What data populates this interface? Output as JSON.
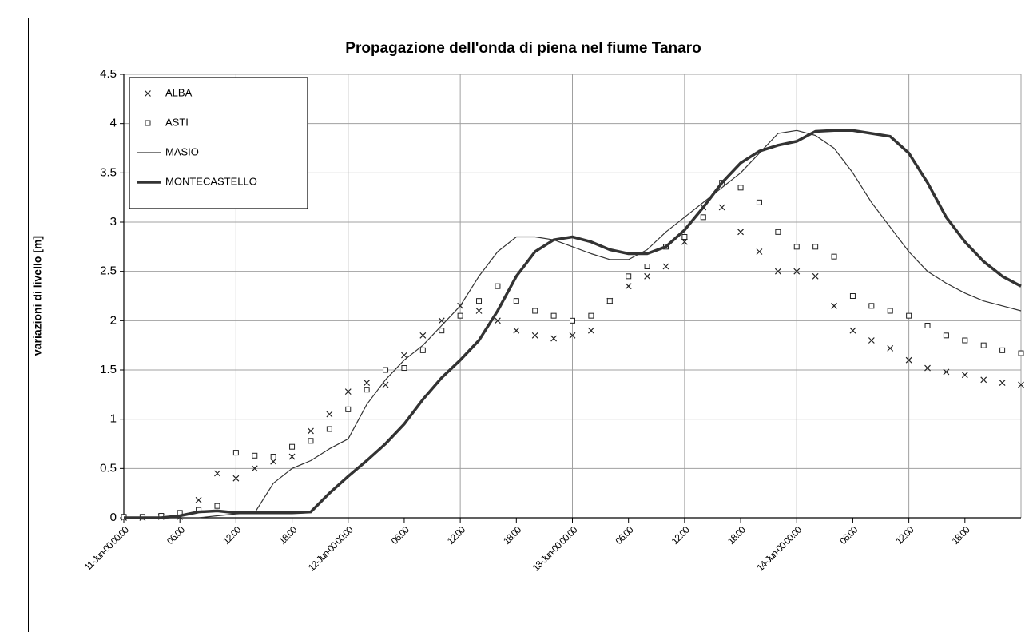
{
  "chart_data": {
    "type": "line",
    "title": "Propagazione dell'onda di piena nel fiume Tanaro",
    "y_label": "variazioni di livello [m]",
    "x": [
      0,
      2,
      4,
      6,
      8,
      10,
      12,
      14,
      16,
      18,
      20,
      22,
      24,
      26,
      28,
      30,
      32,
      34,
      36,
      38,
      40,
      42,
      44,
      46,
      48,
      50,
      52,
      54,
      56,
      58,
      60,
      62,
      64,
      66,
      68,
      70,
      72,
      74,
      76,
      78,
      80,
      82,
      84,
      86,
      88,
      90,
      92,
      94,
      96
    ],
    "series": [
      {
        "name": "ALBA",
        "color": "#222222",
        "marker": "cross",
        "values": [
          0,
          0,
          0.01,
          0.01,
          0.18,
          0.45,
          0.4,
          0.5,
          0.57,
          0.62,
          0.88,
          1.05,
          1.28,
          1.37,
          1.35,
          1.65,
          1.85,
          2.0,
          2.15,
          2.1,
          2.0,
          1.9,
          1.85,
          1.82,
          1.85,
          1.9,
          2.2,
          2.35,
          2.45,
          2.55,
          2.8,
          3.15,
          3.15,
          2.9,
          2.7,
          2.5,
          2.5,
          2.45,
          2.15,
          1.9,
          1.8,
          1.72,
          1.6,
          1.52,
          1.48,
          1.45,
          1.4,
          1.37,
          1.35
        ]
      },
      {
        "name": "ASTI",
        "color": "#222222",
        "marker": "square",
        "values": [
          0.01,
          0.01,
          0.02,
          0.05,
          0.08,
          0.12,
          0.66,
          0.63,
          0.62,
          0.72,
          0.78,
          0.9,
          1.1,
          1.3,
          1.5,
          1.52,
          1.7,
          1.9,
          2.05,
          2.2,
          2.35,
          2.2,
          2.1,
          2.05,
          2.0,
          2.05,
          2.2,
          2.45,
          2.55,
          2.75,
          2.85,
          3.05,
          3.4,
          3.35,
          3.2,
          2.9,
          2.75,
          2.75,
          2.65,
          2.25,
          2.15,
          2.1,
          2.05,
          1.95,
          1.85,
          1.8,
          1.75,
          1.7,
          1.67
        ]
      },
      {
        "name": "MASIO",
        "color": "#333333",
        "line_width": 1.2,
        "values": [
          0,
          0,
          0,
          0,
          0,
          0.02,
          0.04,
          0.05,
          0.35,
          0.5,
          0.58,
          0.7,
          0.8,
          1.15,
          1.4,
          1.6,
          1.75,
          1.95,
          2.15,
          2.45,
          2.7,
          2.85,
          2.85,
          2.82,
          2.75,
          2.68,
          2.62,
          2.62,
          2.72,
          2.9,
          3.05,
          3.2,
          3.35,
          3.5,
          3.7,
          3.9,
          3.93,
          3.88,
          3.75,
          3.5,
          3.2,
          2.95,
          2.7,
          2.5,
          2.38,
          2.28,
          2.2,
          2.15,
          2.1
        ]
      },
      {
        "name": "MONTECASTELLO",
        "color": "#333333",
        "line_width": 3.5,
        "values": [
          0,
          0,
          0,
          0.02,
          0.06,
          0.07,
          0.05,
          0.05,
          0.05,
          0.05,
          0.06,
          0.25,
          0.42,
          0.58,
          0.75,
          0.95,
          1.2,
          1.42,
          1.6,
          1.8,
          2.1,
          2.45,
          2.7,
          2.82,
          2.85,
          2.8,
          2.72,
          2.68,
          2.68,
          2.75,
          2.92,
          3.15,
          3.4,
          3.6,
          3.72,
          3.78,
          3.82,
          3.92,
          3.93,
          3.93,
          3.9,
          3.87,
          3.7,
          3.4,
          3.05,
          2.8,
          2.6,
          2.45,
          2.35
        ]
      }
    ],
    "xlim": [
      0,
      96
    ],
    "xticks": [
      {
        "value": 0,
        "label": "11-Jun-00 00.00"
      },
      {
        "value": 6,
        "label": "06.00"
      },
      {
        "value": 12,
        "label": "12.00"
      },
      {
        "value": 18,
        "label": "18.00"
      },
      {
        "value": 24,
        "label": "12-Jun-00 00.00"
      },
      {
        "value": 30,
        "label": "06.00"
      },
      {
        "value": 36,
        "label": "12.00"
      },
      {
        "value": 42,
        "label": "18.00"
      },
      {
        "value": 48,
        "label": "13-Jun-00 00.00"
      },
      {
        "value": 54,
        "label": "06.00"
      },
      {
        "value": 60,
        "label": "12.00"
      },
      {
        "value": 66,
        "label": "18.00"
      },
      {
        "value": 72,
        "label": "14-Jun-00 00.00"
      },
      {
        "value": 78,
        "label": "06.00"
      },
      {
        "value": 84,
        "label": "12.00"
      },
      {
        "value": 90,
        "label": "18.00"
      }
    ],
    "ylim": [
      0,
      4.5
    ],
    "yticks": [
      0,
      0.5,
      1,
      1.5,
      2,
      2.5,
      3,
      3.5,
      4,
      4.5
    ],
    "grid": true,
    "legend": "top-left"
  }
}
